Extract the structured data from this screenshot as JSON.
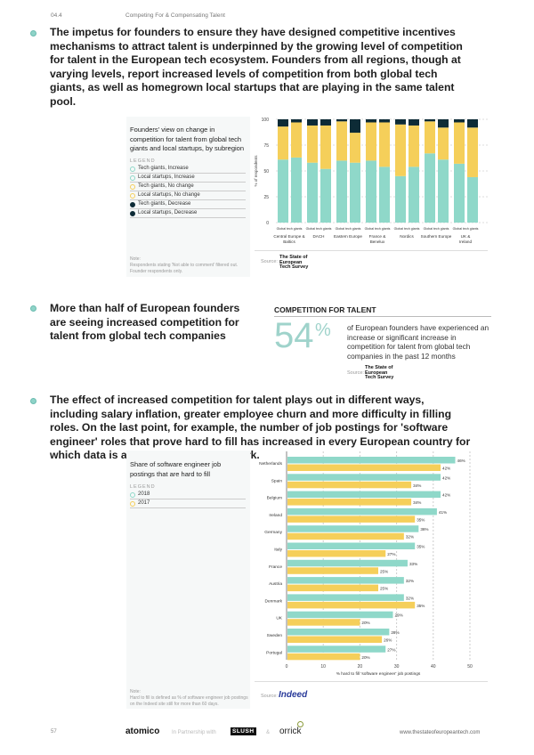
{
  "header": {
    "section": "04.4",
    "title": "Competing For & Compensating Talent"
  },
  "paragraphs": [
    "The impetus for founders to ensure they have designed competitive incentives mechanisms to attract talent is underpinned by the growing level of competition for talent in the European tech ecosystem. Founders from all regions, though at varying levels, report increased levels of competition from both global tech giants, as well as homegrown local startups that are playing in the same talent pool.",
    "More than half of European founders are seeing increased competition for talent from global tech companies",
    "The effect of increased competition for talent plays out in different ways, including salary inflation, greater employee churn and more difficulty in filling roles. On the last point, for example, the number of job postings for 'software engineer' roles that prove hard to fill has increased in every European country for which data is available, except Denmark."
  ],
  "chart1_panel": {
    "title": "Founders' view on change in competition for talent from global tech giants and local startups, by subregion",
    "legend_heading": "LEGEND",
    "legend": [
      "Tech giants, Increase",
      "Local startups, Increase",
      "Tech giants, No change",
      "Local startups, No change",
      "Tech giants, Decrease",
      "Local startups, Decrease"
    ],
    "note_label": "Note:",
    "note": "Respondents stating 'Not able to comment' filtered out. Founder respondents only.",
    "source_label": "Source:",
    "source_logo": "The State of European Tech Survey"
  },
  "highlight": {
    "heading": "COMPETITION FOR TALENT",
    "stat": "54",
    "stat_unit": "%",
    "text": "of European founders have experienced an increase or significant increase in competition for talent from global tech companies in the past 12 months",
    "source_label": "Source:",
    "source_logo": "The State of European Tech Survey"
  },
  "chart2_panel": {
    "title": "Share of software engineer job postings that are hard to fill",
    "legend_heading": "LEGEND",
    "legend": [
      "2018",
      "2017"
    ],
    "note_label": "Note:",
    "note": "Hard to fill is defined as % of software engineer job postings on the Indeed site still for more than 60 days.",
    "source_label": "Source:",
    "source_logo": "Indeed"
  },
  "colors": {
    "increase": "#8fd8c9",
    "no_change": "#f5cf5a",
    "decrease": "#0d2b36",
    "accent": "#8fd3c8"
  },
  "chart_data": [
    {
      "type": "bar",
      "stacked": true,
      "ylabel": "% of respondents",
      "ylim": [
        0,
        100
      ],
      "yticks": [
        0,
        25,
        50,
        75,
        100
      ],
      "categories": [
        "Central Europe & Baltics",
        "DACH",
        "Eastern Europe",
        "France & Benelux",
        "Nordics",
        "Southern Europe",
        "UK & Ireland"
      ],
      "bar_label": "Global tech giants",
      "series": [
        {
          "name": "Increase",
          "giants": [
            61,
            58,
            60,
            60,
            45,
            67,
            57
          ],
          "local": [
            63,
            52,
            58,
            54,
            54,
            61,
            44
          ]
        },
        {
          "name": "No change",
          "giants": [
            32,
            36,
            38,
            37,
            50,
            31,
            40
          ],
          "local": [
            34,
            42,
            29,
            43,
            40,
            31,
            48
          ]
        },
        {
          "name": "Decrease",
          "giants": [
            7,
            6,
            2,
            3,
            5,
            2,
            3
          ],
          "local": [
            3,
            6,
            13,
            3,
            6,
            8,
            8
          ]
        }
      ]
    },
    {
      "type": "bar",
      "orientation": "horizontal",
      "xlabel": "% hard to fill 'software engineer' job postings",
      "xlim": [
        0,
        50
      ],
      "xticks": [
        0,
        10,
        20,
        30,
        40,
        50
      ],
      "categories": [
        "Netherlands",
        "Spain",
        "Belgium",
        "Ireland",
        "Germany",
        "Italy",
        "France",
        "Austria",
        "Denmark",
        "UK",
        "Sweden",
        "Portugal"
      ],
      "series": [
        {
          "name": "2018",
          "values": [
            46,
            42,
            42,
            41,
            36,
            35,
            33,
            32,
            32,
            29,
            28,
            27
          ]
        },
        {
          "name": "2017",
          "values": [
            42,
            34,
            34,
            35,
            32,
            27,
            25,
            25,
            35,
            20,
            26,
            20
          ]
        }
      ]
    }
  ],
  "footer": {
    "page": "57",
    "brand": "atomico",
    "partnership": "In Partnership with",
    "partner1": "SLUSH",
    "amp": "&",
    "partner2": "orrick",
    "url": "www.thestateofeuropeantech.com"
  }
}
